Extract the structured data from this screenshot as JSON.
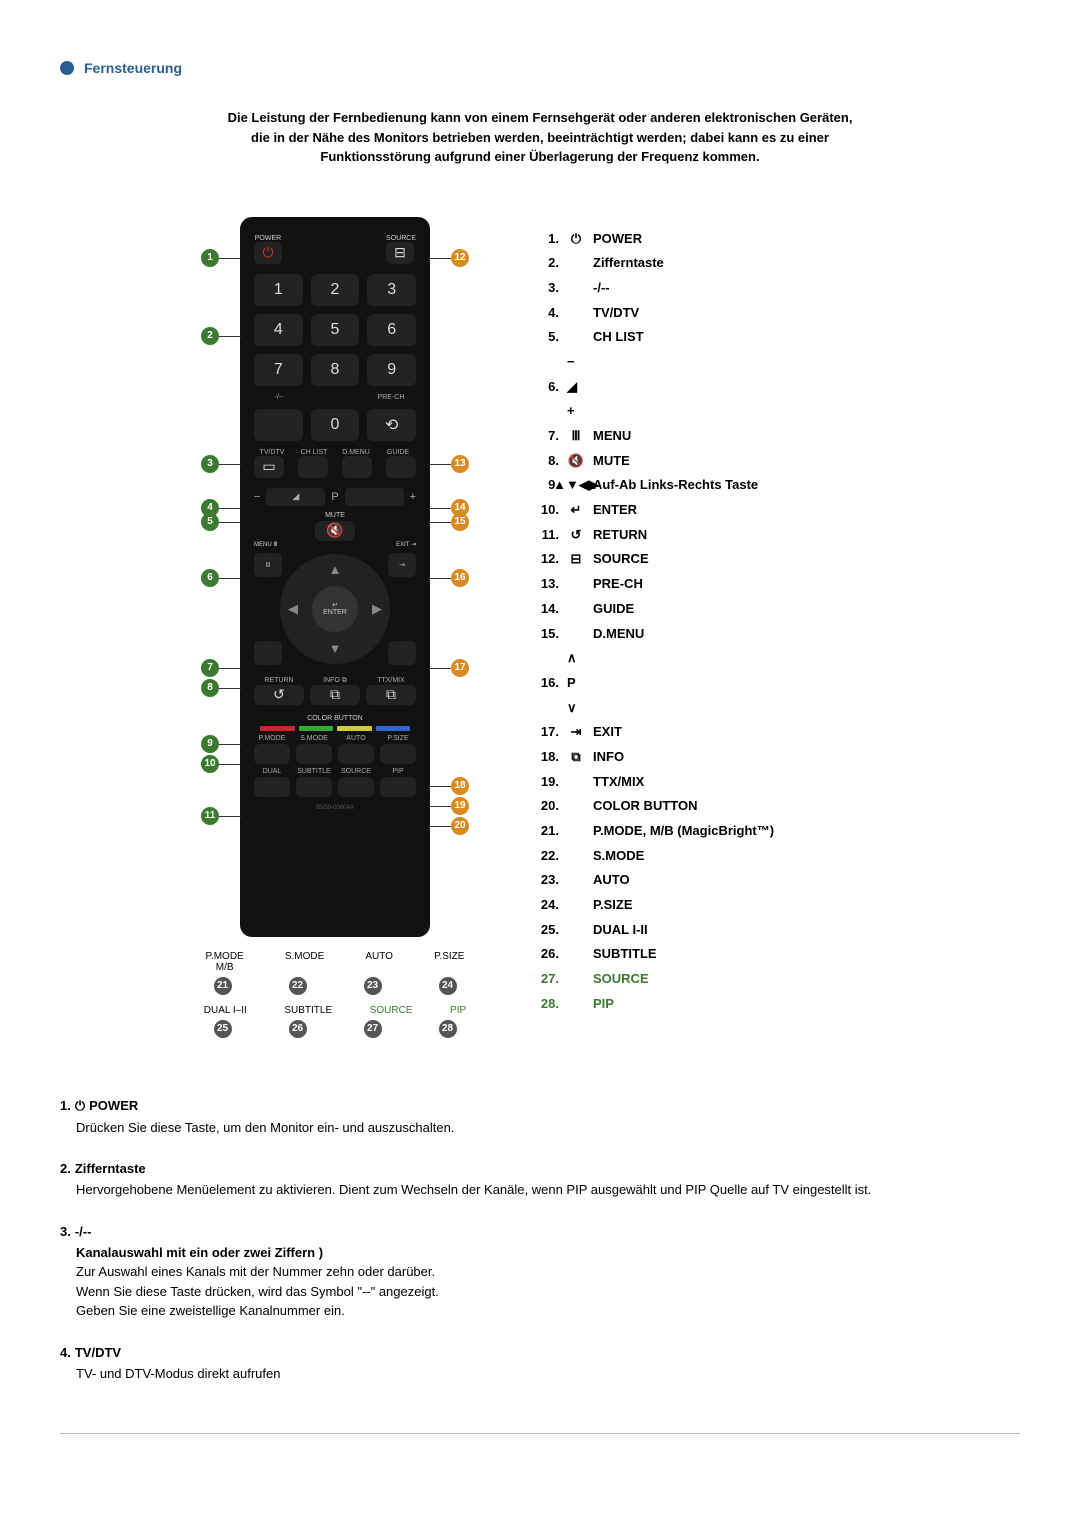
{
  "header": {
    "title": "Fernsteuerung"
  },
  "intro": {
    "line1": "Die Leistung der Fernbedienung kann von einem Fernsehgerät oder anderen elektronischen Geräten,",
    "line2": "die in der Nähe des Monitors betrieben werden, beeinträchtigt werden; dabei kann es zu einer",
    "line3": "Funktionsstörung aufgrund einer Überlagerung der Frequenz kommen."
  },
  "list": [
    {
      "n": "1.",
      "icon": "⏻",
      "label": "POWER"
    },
    {
      "n": "2.",
      "icon": "",
      "label": "Zifferntaste"
    },
    {
      "n": "3.",
      "icon": "",
      "label": "-/--"
    },
    {
      "n": "4.",
      "icon": "",
      "label": "TV/DTV"
    },
    {
      "n": "5.",
      "icon": "",
      "label": "CH LIST"
    },
    {
      "n": "6.",
      "icon": "− ◢ +",
      "label": ""
    },
    {
      "n": "7.",
      "icon": "Ⅲ",
      "label": "MENU"
    },
    {
      "n": "8.",
      "icon": "🔇",
      "label": "MUTE"
    },
    {
      "n": "9.",
      "icon": "▲▼◀▶",
      "label": "Auf-Ab Links-Rechts Taste"
    },
    {
      "n": "10.",
      "icon": "↵",
      "label": "ENTER"
    },
    {
      "n": "11.",
      "icon": "↺",
      "label": "RETURN"
    },
    {
      "n": "12.",
      "icon": "⊟",
      "label": "SOURCE"
    },
    {
      "n": "13.",
      "icon": "",
      "label": "PRE-CH"
    },
    {
      "n": "14.",
      "icon": "",
      "label": "GUIDE"
    },
    {
      "n": "15.",
      "icon": "",
      "label": "D.MENU"
    },
    {
      "n": "16.",
      "icon": "∧ P ∨",
      "label": ""
    },
    {
      "n": "17.",
      "icon": "⇥",
      "label": "EXIT"
    },
    {
      "n": "18.",
      "icon": "⧉",
      "label": "INFO"
    },
    {
      "n": "19.",
      "icon": "",
      "label": "TTX/MIX"
    },
    {
      "n": "20.",
      "icon": "",
      "label": "COLOR BUTTON"
    },
    {
      "n": "21.",
      "icon": "",
      "label": "P.MODE, M/B (MagicBright™)"
    },
    {
      "n": "22.",
      "icon": "",
      "label": "S.MODE"
    },
    {
      "n": "23.",
      "icon": "",
      "label": "AUTO"
    },
    {
      "n": "24.",
      "icon": "",
      "label": "P.SIZE"
    },
    {
      "n": "25.",
      "icon": "",
      "label": "DUAL I-II"
    },
    {
      "n": "26.",
      "icon": "",
      "label": "SUBTITLE"
    },
    {
      "n": "27.",
      "icon": "",
      "label": "SOURCE",
      "green": true
    },
    {
      "n": "28.",
      "icon": "",
      "label": "PIP",
      "green": true
    }
  ],
  "remote": {
    "power": "POWER",
    "source": "SOURCE",
    "nums": [
      "1",
      "2",
      "3",
      "4",
      "5",
      "6",
      "7",
      "8",
      "9"
    ],
    "dash": "-/--",
    "zero": "0",
    "prech": "PRE-CH",
    "row4": [
      "TV/DTV",
      "CH LIST",
      "D.MENU",
      "GUIDE"
    ],
    "vol_minus": "−",
    "vol_plus": "+",
    "p": "P",
    "mute": "MUTE",
    "menu": "MENU Ⅲ",
    "exit": "EXIT ⇥",
    "enter": "ENTER",
    "enter_icon": "↵",
    "return": "RETURN",
    "info": "INFO ⧉",
    "ttx": "TTX/MIX",
    "colorbtn": "COLOR BUTTON",
    "grid1": [
      "P.MODE",
      "S.MODE",
      "AUTO",
      "P.SIZE"
    ],
    "grid1b": "M/B",
    "grid2": [
      "DUAL",
      "SUBTITLE",
      "SOURCE",
      "PIP"
    ],
    "grid2b": "I-II",
    "color_strip": [
      "#c23",
      "#3a3",
      "#cc3",
      "#36c"
    ]
  },
  "legend": {
    "row1": [
      "P.MODE\nM/B",
      "S.MODE",
      "AUTO",
      "P.SIZE"
    ],
    "nums1": [
      "21",
      "22",
      "23",
      "24"
    ],
    "row2": [
      "DUAL I–II",
      "SUBTITLE",
      "SOURCE",
      "PIP"
    ],
    "nums2": [
      "25",
      "26",
      "27",
      "28"
    ],
    "green_idx": [
      2,
      3
    ]
  },
  "desc": {
    "d1": {
      "num": "1.",
      "icon": "⏻",
      "title": "POWER",
      "body": "Drücken Sie diese Taste, um den Monitor ein- und auszuschalten."
    },
    "d2": {
      "num": "2.",
      "title": "Zifferntaste",
      "body": "Hervorgehobene Menüelement zu aktivieren. Dient zum Wechseln der Kanäle, wenn PIP ausgewählt und PIP Quelle auf TV eingestellt ist."
    },
    "d3": {
      "num": "3.",
      "title": "-/--",
      "sub": "Kanalauswahl mit ein oder zwei Ziffern )",
      "l1": "Zur Auswahl eines Kanals mit der Nummer zehn oder darüber.",
      "l2": "Wenn Sie diese Taste drücken, wird das Symbol \"--\" angezeigt.",
      "l3": "Geben Sie eine zweistellige Kanalnummer ein."
    },
    "d4": {
      "num": "4.",
      "title": "TV/DTV",
      "body": "TV- und DTV-Modus direkt aufrufen"
    }
  },
  "callouts_left": [
    {
      "n": "1",
      "t": 32
    },
    {
      "n": "2",
      "t": 110
    },
    {
      "n": "3",
      "t": 238
    },
    {
      "n": "4",
      "t": 282
    },
    {
      "n": "5",
      "t": 296
    },
    {
      "n": "6",
      "t": 352
    },
    {
      "n": "7",
      "t": 442
    },
    {
      "n": "8",
      "t": 462
    },
    {
      "n": "9",
      "t": 518
    },
    {
      "n": "10",
      "t": 538
    },
    {
      "n": "11",
      "t": 590
    }
  ],
  "callouts_right": [
    {
      "n": "12",
      "t": 32
    },
    {
      "n": "13",
      "t": 238
    },
    {
      "n": "14",
      "t": 282
    },
    {
      "n": "15",
      "t": 296
    },
    {
      "n": "16",
      "t": 352
    },
    {
      "n": "17",
      "t": 442
    },
    {
      "n": "18",
      "t": 560
    },
    {
      "n": "19",
      "t": 580
    },
    {
      "n": "20",
      "t": 600
    }
  ]
}
